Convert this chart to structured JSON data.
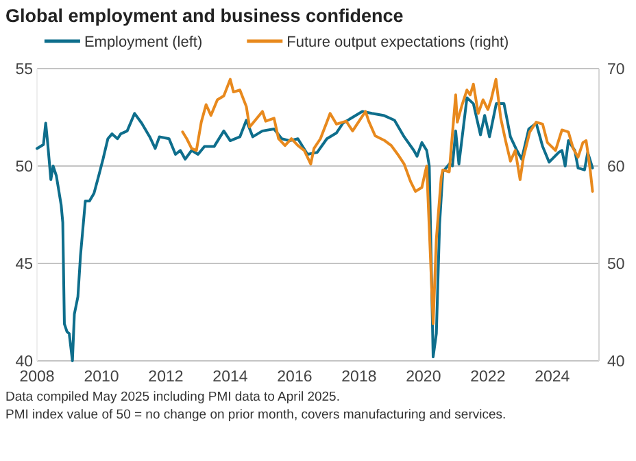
{
  "chart_data": {
    "type": "line",
    "title": "Global employment and business confidence",
    "xlim": [
      2008,
      2025.45
    ],
    "xticks": [
      2008,
      2010,
      2012,
      2014,
      2016,
      2018,
      2020,
      2022,
      2024
    ],
    "ylim": [
      40,
      55
    ],
    "yticks": [
      40,
      45,
      50,
      55
    ],
    "y2lim": [
      40,
      70
    ],
    "y2ticks": [
      40,
      50,
      60,
      70
    ],
    "grid": "y",
    "legend": "top",
    "series": [
      {
        "name": "Employment (left)",
        "color": "#0e6e8c",
        "x": [
          2008.0,
          2008.2,
          2008.27,
          2008.33,
          2008.43,
          2008.5,
          2008.6,
          2008.75,
          2008.8,
          2008.85,
          2008.93,
          2009.0,
          2009.1,
          2009.16,
          2009.27,
          2009.35,
          2009.5,
          2009.63,
          2009.77,
          2009.9,
          2010.05,
          2010.2,
          2010.33,
          2010.5,
          2010.6,
          2010.8,
          2011.03,
          2011.25,
          2011.5,
          2011.67,
          2011.8,
          2012.1,
          2012.3,
          2012.45,
          2012.6,
          2012.8,
          2013.0,
          2013.2,
          2013.5,
          2013.8,
          2014.0,
          2014.3,
          2014.5,
          2014.7,
          2015.0,
          2015.36,
          2015.6,
          2015.85,
          2016.1,
          2016.4,
          2016.7,
          2017.0,
          2017.3,
          2017.5,
          2017.8,
          2018.1,
          2018.4,
          2018.76,
          2019.1,
          2019.4,
          2019.7,
          2019.8,
          2019.95,
          2020.1,
          2020.18,
          2020.3,
          2020.4,
          2020.5,
          2020.6,
          2020.8,
          2020.9,
          2021.0,
          2021.1,
          2021.35,
          2021.55,
          2021.77,
          2021.9,
          2022.05,
          2022.26,
          2022.5,
          2022.7,
          2022.9,
          2023.05,
          2023.27,
          2023.5,
          2023.7,
          2023.9,
          2024.2,
          2024.3,
          2024.4,
          2024.5,
          2024.7,
          2024.8,
          2025.0,
          2025.1,
          2025.25
        ],
        "values": [
          50.9,
          51.1,
          52.2,
          51.2,
          49.3,
          50.0,
          49.5,
          48.0,
          47.1,
          41.9,
          41.5,
          41.4,
          40.0,
          42.4,
          43.3,
          45.4,
          48.2,
          48.2,
          48.6,
          49.4,
          50.35,
          51.4,
          51.65,
          51.4,
          51.65,
          51.8,
          52.7,
          52.2,
          51.5,
          50.9,
          51.5,
          51.4,
          50.6,
          50.8,
          50.35,
          50.8,
          50.6,
          51.0,
          51.0,
          51.8,
          51.3,
          51.5,
          52.35,
          51.5,
          51.8,
          51.9,
          51.4,
          51.3,
          51.4,
          50.6,
          50.7,
          51.4,
          51.7,
          52.2,
          52.5,
          52.8,
          52.7,
          52.6,
          52.35,
          51.5,
          50.8,
          50.5,
          51.2,
          50.8,
          50.0,
          40.2,
          41.4,
          47.0,
          49.7,
          50.1,
          50.0,
          51.8,
          50.1,
          53.5,
          53.2,
          51.6,
          52.6,
          51.5,
          53.2,
          53.2,
          51.5,
          50.8,
          50.35,
          51.9,
          52.2,
          51.0,
          50.2,
          50.7,
          50.8,
          50.0,
          51.3,
          50.8,
          49.9,
          49.8,
          50.7,
          49.9
        ]
      },
      {
        "name": "Future output expectations (right)",
        "color": "#e8891d",
        "axis": "y2",
        "x": [
          2012.52,
          2012.65,
          2012.8,
          2012.95,
          2013.1,
          2013.25,
          2013.4,
          2013.6,
          2013.8,
          2014.0,
          2014.1,
          2014.3,
          2014.5,
          2014.6,
          2014.75,
          2015.0,
          2015.1,
          2015.36,
          2015.5,
          2015.7,
          2015.9,
          2016.1,
          2016.3,
          2016.5,
          2016.6,
          2016.8,
          2017.0,
          2017.1,
          2017.3,
          2017.6,
          2017.8,
          2018.0,
          2018.2,
          2018.3,
          2018.5,
          2018.8,
          2019.0,
          2019.2,
          2019.4,
          2019.6,
          2019.75,
          2019.95,
          2020.05,
          2020.1,
          2020.2,
          2020.3,
          2020.4,
          2020.55,
          2020.6,
          2020.8,
          2021.0,
          2021.05,
          2021.2,
          2021.35,
          2021.45,
          2021.55,
          2021.7,
          2021.85,
          2022.0,
          2022.1,
          2022.25,
          2022.4,
          2022.55,
          2022.7,
          2022.85,
          2023.0,
          2023.1,
          2023.3,
          2023.5,
          2023.7,
          2023.85,
          2024.1,
          2024.3,
          2024.5,
          2024.65,
          2024.8,
          2024.95,
          2025.05,
          2025.12,
          2025.18,
          2025.25
        ],
        "values": [
          63.5,
          62.8,
          61.8,
          61.6,
          64.5,
          66.3,
          65.2,
          66.8,
          67.2,
          68.9,
          67.6,
          67.8,
          66.1,
          64.0,
          64.6,
          65.6,
          64.6,
          64.9,
          62.8,
          62.1,
          62.8,
          62.1,
          61.6,
          60.2,
          61.8,
          62.8,
          64.5,
          65.4,
          64.3,
          64.6,
          63.6,
          64.6,
          65.6,
          64.6,
          63.1,
          62.6,
          62.1,
          61.2,
          60.2,
          58.4,
          57.4,
          57.8,
          59.3,
          60.0,
          52.0,
          43.8,
          52.5,
          58.8,
          59.6,
          59.4,
          67.3,
          64.5,
          66.3,
          67.8,
          67.3,
          68.4,
          65.4,
          66.8,
          65.8,
          66.8,
          68.9,
          64.9,
          62.6,
          60.5,
          61.6,
          58.6,
          60.8,
          63.5,
          64.5,
          64.3,
          62.4,
          61.6,
          63.7,
          63.5,
          61.8,
          60.9,
          62.4,
          62.6,
          61.0,
          59.5,
          57.4
        ]
      }
    ],
    "annotations": [
      "Data compiled May  2025 including PMI data to April 2025.",
      "PMI index value of 50 = no change on prior month, covers manufacturing and services."
    ]
  }
}
